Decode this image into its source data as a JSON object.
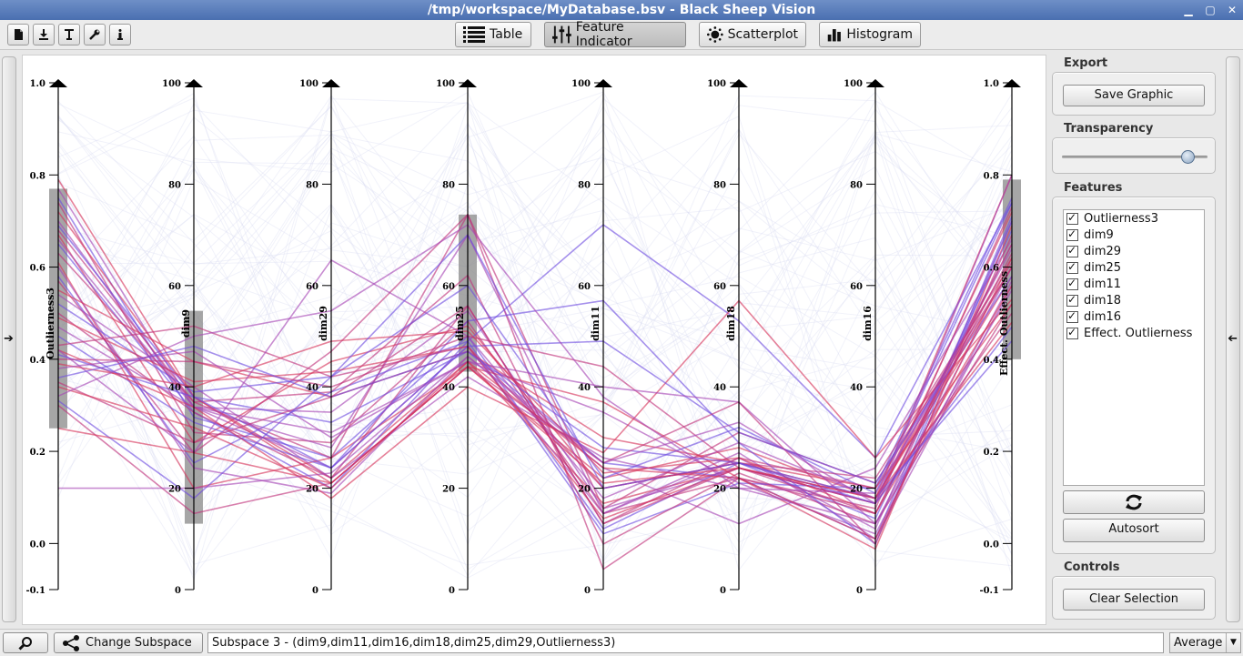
{
  "window": {
    "title": "/tmp/workspace/MyDatabase.bsv - Black Sheep Vision"
  },
  "toolbar": {
    "icon_buttons": [
      "new-file-icon",
      "import-icon",
      "text-icon",
      "wrench-icon",
      "info-icon"
    ],
    "views": [
      {
        "label": "Table",
        "icon": "list-icon",
        "active": false
      },
      {
        "label": "Feature Indicator",
        "icon": "sliders-icon",
        "active": true
      },
      {
        "label": "Scatterplot",
        "icon": "scatter-icon",
        "active": false
      },
      {
        "label": "Histogram",
        "icon": "histogram-icon",
        "active": false
      }
    ]
  },
  "panel": {
    "export": {
      "title": "Export",
      "button": "Save Graphic"
    },
    "transparency": {
      "title": "Transparency",
      "value": 0.86
    },
    "features": {
      "title": "Features",
      "items": [
        {
          "label": "Outlierness3",
          "checked": true
        },
        {
          "label": "dim9",
          "checked": true
        },
        {
          "label": "dim29",
          "checked": true
        },
        {
          "label": "dim25",
          "checked": true
        },
        {
          "label": "dim11",
          "checked": true
        },
        {
          "label": "dim18",
          "checked": true
        },
        {
          "label": "dim16",
          "checked": true
        },
        {
          "label": "Effect. Outlierness",
          "checked": true
        }
      ],
      "refresh_icon": "refresh-icon",
      "autosort": "Autosort"
    },
    "controls": {
      "title": "Controls",
      "clear": "Clear Selection"
    }
  },
  "bottom": {
    "search_icon": "search-icon",
    "change_subspace": "Change Subspace",
    "subspace_text": "Subspace 3 - (dim9,dim11,dim16,dim18,dim25,dim29,Outlierness3)",
    "aggregation": "Average"
  },
  "chart_data": {
    "type": "parallel-coordinates",
    "axes": [
      {
        "name": "Outlierness3",
        "range": [
          -0.1,
          1.0
        ],
        "ticks": [
          "1.0",
          "0.8",
          "0.6",
          "0.4",
          "0.2",
          "0.0",
          "-0.1"
        ],
        "tick_values": [
          1.0,
          0.8,
          0.6,
          0.4,
          0.2,
          0.0,
          -0.1
        ],
        "selection": [
          0.25,
          0.77
        ]
      },
      {
        "name": "dim9",
        "range": [
          0,
          100
        ],
        "ticks": [
          "100",
          "80",
          "60",
          "40",
          "20",
          "0"
        ],
        "tick_values": [
          100,
          80,
          60,
          40,
          20,
          0
        ],
        "selection": [
          13,
          55
        ]
      },
      {
        "name": "dim29",
        "range": [
          0,
          100
        ],
        "ticks": [
          "100",
          "80",
          "60",
          "40",
          "20",
          "0"
        ],
        "tick_values": [
          100,
          80,
          60,
          40,
          20,
          0
        ],
        "selection": null
      },
      {
        "name": "dim25",
        "range": [
          0,
          100
        ],
        "ticks": [
          "100",
          "80",
          "60",
          "40",
          "20",
          "0"
        ],
        "tick_values": [
          100,
          80,
          60,
          40,
          20,
          0
        ],
        "selection": [
          43,
          74
        ]
      },
      {
        "name": "dim11",
        "range": [
          0,
          100
        ],
        "ticks": [
          "100",
          "80",
          "60",
          "40",
          "20",
          "0"
        ],
        "tick_values": [
          100,
          80,
          60,
          40,
          20,
          0
        ],
        "selection": null
      },
      {
        "name": "dim18",
        "range": [
          0,
          100
        ],
        "ticks": [
          "100",
          "80",
          "60",
          "40",
          "20",
          "0"
        ],
        "tick_values": [
          100,
          80,
          60,
          40,
          20,
          0
        ],
        "selection": null
      },
      {
        "name": "dim16",
        "range": [
          0,
          100
        ],
        "ticks": [
          "100",
          "80",
          "60",
          "40",
          "20",
          "0"
        ],
        "tick_values": [
          100,
          80,
          60,
          40,
          20,
          0
        ],
        "selection": null
      },
      {
        "name": "Effect. Outlierness",
        "range": [
          -0.1,
          1.0
        ],
        "ticks": [
          "1.0",
          "0.8",
          "0.6",
          "0.4",
          "0.2",
          "0.0",
          "-0.1"
        ],
        "tick_values": [
          1.0,
          0.8,
          0.6,
          0.4,
          0.2,
          0.0,
          -0.1
        ],
        "selection": [
          0.4,
          0.79
        ]
      }
    ],
    "line_colors": [
      "#d6335a",
      "#a645b5",
      "#6f4ee0",
      "#c0327a"
    ],
    "context_color": "#d8daf2",
    "grid": false,
    "highlighted_lines": [
      [
        0.79,
        38,
        22,
        45,
        17,
        24,
        17,
        0.72
      ],
      [
        0.77,
        36,
        24,
        48,
        15,
        26,
        12,
        0.7
      ],
      [
        0.75,
        34,
        26,
        50,
        12,
        25,
        14,
        0.68
      ],
      [
        0.74,
        31,
        29,
        53,
        15,
        22,
        16,
        0.73
      ],
      [
        0.72,
        38,
        21,
        44,
        22,
        28,
        18,
        0.8
      ],
      [
        0.7,
        36,
        35,
        55,
        16,
        24,
        17,
        0.65
      ],
      [
        0.69,
        38,
        33,
        47,
        25,
        22,
        10,
        0.71
      ],
      [
        0.68,
        37,
        26,
        74,
        4,
        22,
        15,
        0.63
      ],
      [
        0.67,
        29,
        45,
        52,
        20,
        25,
        18,
        0.58
      ],
      [
        0.66,
        36,
        28,
        70,
        15,
        27,
        10,
        0.56
      ],
      [
        0.65,
        35,
        20,
        49,
        11,
        21,
        20,
        0.75
      ],
      [
        0.63,
        37,
        39,
        62,
        9,
        23,
        13,
        0.52
      ],
      [
        0.61,
        20,
        26,
        44,
        37,
        22,
        8,
        0.69
      ],
      [
        0.6,
        24,
        19,
        46,
        24,
        13,
        24,
        0.66
      ],
      [
        0.58,
        25,
        39,
        49,
        72,
        53,
        26,
        0.74
      ],
      [
        0.57,
        27,
        47,
        74,
        16,
        31,
        21,
        0.6
      ],
      [
        0.55,
        45,
        38,
        47,
        30,
        25,
        20,
        0.52
      ],
      [
        0.54,
        40,
        22,
        42,
        26,
        20,
        13,
        0.55
      ],
      [
        0.52,
        39,
        42,
        60,
        22,
        32,
        19,
        0.74
      ],
      [
        0.5,
        35,
        22,
        56,
        13,
        26,
        20,
        0.62
      ],
      [
        0.49,
        41,
        43,
        48,
        14,
        24,
        18,
        0.48
      ],
      [
        0.47,
        36,
        31,
        45,
        35,
        21,
        11,
        0.57
      ],
      [
        0.45,
        33,
        24,
        53,
        57,
        29,
        9,
        0.7
      ],
      [
        0.43,
        52,
        42,
        48,
        20,
        25,
        22,
        0.61
      ],
      [
        0.42,
        36,
        18,
        40,
        27,
        57,
        26,
        0.53
      ],
      [
        0.42,
        27,
        65,
        50,
        18,
        29,
        18,
        0.64
      ],
      [
        0.41,
        38,
        24,
        48,
        49,
        31,
        21,
        0.58
      ],
      [
        0.4,
        45,
        40,
        50,
        44,
        24,
        17,
        0.5
      ],
      [
        0.39,
        40,
        49,
        51,
        23,
        26,
        15,
        0.56
      ],
      [
        0.38,
        47,
        30,
        45,
        40,
        37,
        13,
        0.6
      ],
      [
        0.36,
        48,
        38,
        47,
        28,
        25,
        17,
        0.47
      ],
      [
        0.35,
        29,
        38,
        56,
        13,
        24,
        15,
        0.65
      ],
      [
        0.34,
        32,
        20,
        45,
        24,
        22,
        10,
        0.62
      ],
      [
        0.32,
        50,
        55,
        72,
        38,
        20,
        19,
        0.6
      ],
      [
        0.31,
        18,
        42,
        70,
        20,
        25,
        18,
        0.44
      ],
      [
        0.3,
        15,
        21,
        44,
        25,
        37,
        9,
        0.67
      ],
      [
        0.25,
        27,
        21,
        44,
        21,
        24,
        18,
        0.6
      ],
      [
        0.12,
        20,
        23,
        46,
        25,
        33,
        17,
        0.8
      ]
    ]
  }
}
